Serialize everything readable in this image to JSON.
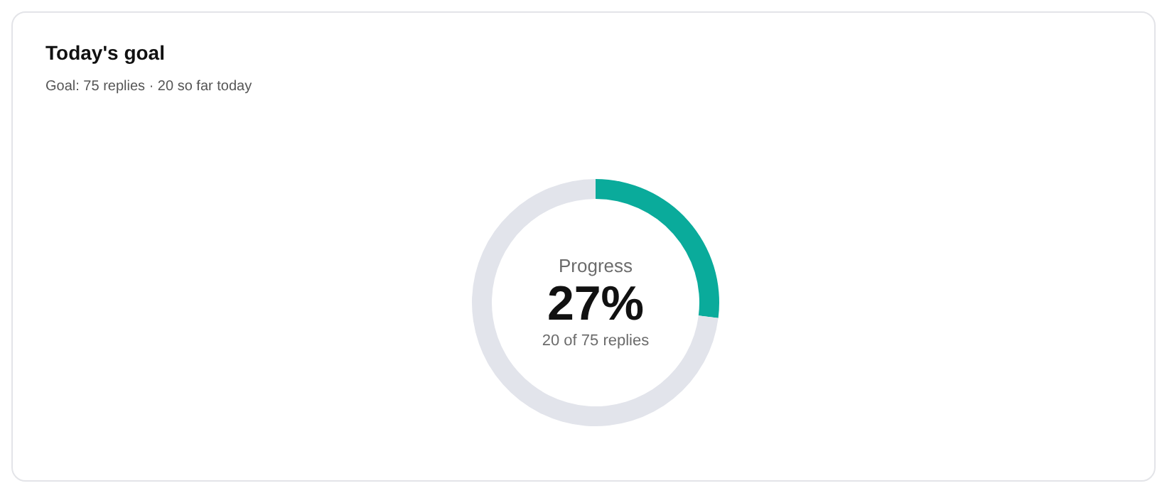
{
  "chart_data": {
    "type": "donut",
    "title": "Today's goal",
    "subtitle": "Goal: 75 replies · 20 so far today",
    "categories": [
      null,
      null
    ],
    "values": [
      27,
      73
    ],
    "colors": [
      "#0aab9b",
      "#e2e4eb"
    ],
    "annotations": [
      "Progress",
      "27%",
      "20 of 75 replies"
    ]
  }
}
